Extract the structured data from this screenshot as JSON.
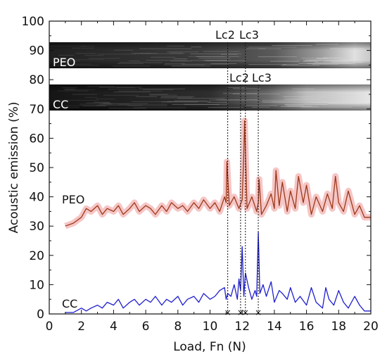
{
  "chart_data": {
    "type": "line",
    "xlabel": "Load, Fn (N)",
    "ylabel": "Acoustic emission (%)",
    "xlim": [
      0,
      20
    ],
    "ylim": [
      0,
      100
    ],
    "xticks": [
      "0",
      "2",
      "4",
      "6",
      "8",
      "10",
      "12",
      "14",
      "16",
      "18",
      "20"
    ],
    "yticks": [
      "0",
      "10",
      "20",
      "30",
      "40",
      "50",
      "60",
      "70",
      "80",
      "90",
      "100"
    ],
    "series": [
      {
        "name": "PEO",
        "color": "#9a3a1a",
        "band_color": "#f4b6b6",
        "x": [
          1.0,
          1.5,
          2.0,
          2.3,
          2.6,
          3.0,
          3.3,
          3.6,
          4.0,
          4.3,
          4.6,
          5.0,
          5.3,
          5.6,
          6.0,
          6.3,
          6.6,
          7.0,
          7.3,
          7.6,
          8.0,
          8.3,
          8.6,
          9.0,
          9.3,
          9.6,
          10.0,
          10.3,
          10.6,
          10.9,
          11.0,
          11.05,
          11.2,
          11.5,
          11.8,
          12.0,
          12.1,
          12.15,
          12.3,
          12.6,
          12.9,
          13.0,
          13.05,
          13.2,
          13.5,
          13.8,
          14.0,
          14.1,
          14.3,
          14.5,
          14.8,
          15.0,
          15.3,
          15.5,
          15.8,
          16.0,
          16.3,
          16.6,
          17.0,
          17.3,
          17.6,
          17.8,
          18.0,
          18.3,
          18.6,
          19.0,
          19.3,
          19.6,
          20.0
        ],
        "y": [
          30,
          31,
          33,
          36,
          35,
          37,
          34,
          36,
          35,
          37,
          34,
          36,
          38,
          35,
          37,
          36,
          34,
          37,
          35,
          38,
          36,
          37,
          35,
          38,
          36,
          39,
          36,
          38,
          35,
          40,
          38,
          52,
          37,
          40,
          36,
          39,
          55,
          66,
          36,
          40,
          35,
          38,
          46,
          34,
          37,
          41,
          36,
          49,
          37,
          45,
          35,
          42,
          36,
          47,
          38,
          44,
          34,
          40,
          35,
          41,
          36,
          47,
          38,
          35,
          42,
          34,
          37,
          33,
          33
        ]
      },
      {
        "name": "CC",
        "color": "#1f1fcf",
        "x": [
          1.0,
          1.5,
          2.0,
          2.3,
          2.6,
          3.0,
          3.3,
          3.6,
          4.0,
          4.3,
          4.6,
          5.0,
          5.3,
          5.6,
          6.0,
          6.3,
          6.6,
          7.0,
          7.3,
          7.6,
          8.0,
          8.3,
          8.6,
          9.0,
          9.3,
          9.6,
          10.0,
          10.3,
          10.6,
          10.9,
          11.0,
          11.1,
          11.3,
          11.5,
          11.7,
          11.8,
          11.9,
          12.0,
          12.1,
          12.2,
          12.4,
          12.6,
          12.8,
          12.9,
          13.0,
          13.1,
          13.3,
          13.5,
          13.8,
          14.0,
          14.3,
          14.5,
          14.8,
          15.0,
          15.3,
          15.6,
          16.0,
          16.3,
          16.6,
          17.0,
          17.2,
          17.4,
          17.7,
          18.0,
          18.3,
          18.6,
          19.0,
          19.3,
          19.6,
          20.0
        ],
        "y": [
          0.5,
          0.5,
          2,
          1,
          2,
          3,
          2,
          4,
          3,
          5,
          2,
          4,
          5,
          3,
          5,
          4,
          6,
          3,
          5,
          4,
          6,
          3,
          5,
          6,
          4,
          7,
          5,
          6,
          8,
          9,
          5,
          7,
          6,
          10,
          5,
          12,
          8,
          23,
          6,
          14,
          9,
          5,
          8,
          6,
          28,
          7,
          10,
          6,
          11,
          4,
          8,
          7,
          5,
          9,
          4,
          6,
          3,
          9,
          4,
          2,
          9,
          5,
          3,
          8,
          4,
          2,
          6,
          3,
          1,
          1
        ]
      }
    ],
    "annotations": {
      "peo_label": "PEO",
      "cc_label": "CC",
      "lc2_top": "Lc2",
      "lc3_top": "Lc3",
      "lc2_mid": "Lc2",
      "lc3_mid": "Lc3",
      "strip_peo_label": "PEO",
      "strip_cc_label": "CC"
    },
    "critical_loads": {
      "peo": {
        "Lc2": 11.1,
        "Lc3": 12.2
      },
      "cc": {
        "Lc2": 11.9,
        "Lc3": 13.0
      }
    },
    "markers_x": [
      11.1,
      11.9,
      12.2,
      13.0
    ],
    "grid": false
  }
}
